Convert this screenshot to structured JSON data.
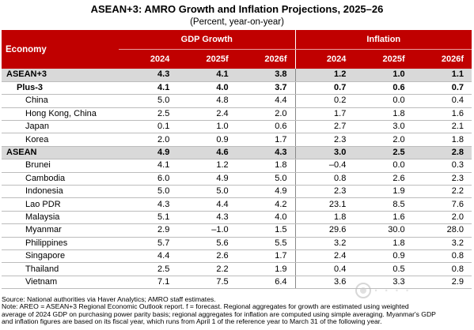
{
  "title": "ASEAN+3: AMRO Growth and Inflation Projections, 2025–26",
  "subtitle": "(Percent, year-on-year)",
  "table": {
    "economy_header": "Economy",
    "group_gdp": "GDP Growth",
    "group_inflation": "Inflation",
    "years": [
      "2024",
      "2025f",
      "2026f",
      "2024",
      "2025f",
      "2026f"
    ],
    "rows": [
      {
        "name": "ASEAN+3",
        "level": 1,
        "bold": true,
        "shade": true,
        "values": [
          "4.3",
          "4.1",
          "3.8",
          "1.2",
          "1.0",
          "1.1"
        ]
      },
      {
        "name": "Plus-3",
        "level": 2,
        "bold": true,
        "shade": false,
        "values": [
          "4.1",
          "4.0",
          "3.7",
          "0.7",
          "0.6",
          "0.7"
        ]
      },
      {
        "name": "China",
        "level": 3,
        "bold": false,
        "shade": false,
        "values": [
          "5.0",
          "4.8",
          "4.4",
          "0.2",
          "0.0",
          "0.4"
        ]
      },
      {
        "name": "Hong Kong, China",
        "level": 3,
        "bold": false,
        "shade": false,
        "values": [
          "2.5",
          "2.4",
          "2.0",
          "1.7",
          "1.8",
          "1.6"
        ]
      },
      {
        "name": "Japan",
        "level": 3,
        "bold": false,
        "shade": false,
        "values": [
          "0.1",
          "1.0",
          "0.6",
          "2.7",
          "3.0",
          "2.1"
        ]
      },
      {
        "name": "Korea",
        "level": 3,
        "bold": false,
        "shade": false,
        "values": [
          "2.0",
          "0.9",
          "1.7",
          "2.3",
          "2.0",
          "1.8"
        ]
      },
      {
        "name": "ASEAN",
        "level": 1,
        "bold": true,
        "shade": true,
        "values": [
          "4.9",
          "4.6",
          "4.3",
          "3.0",
          "2.5",
          "2.8"
        ]
      },
      {
        "name": "Brunei",
        "level": 3,
        "bold": false,
        "shade": false,
        "values": [
          "4.1",
          "1.2",
          "1.8",
          "–0.4",
          "0.0",
          "0.3"
        ]
      },
      {
        "name": "Cambodia",
        "level": 3,
        "bold": false,
        "shade": false,
        "values": [
          "6.0",
          "4.9",
          "5.0",
          "0.8",
          "2.6",
          "2.3"
        ]
      },
      {
        "name": "Indonesia",
        "level": 3,
        "bold": false,
        "shade": false,
        "values": [
          "5.0",
          "5.0",
          "4.9",
          "2.3",
          "1.9",
          "2.2"
        ]
      },
      {
        "name": "Lao PDR",
        "level": 3,
        "bold": false,
        "shade": false,
        "values": [
          "4.3",
          "4.4",
          "4.2",
          "23.1",
          "8.5",
          "7.6"
        ]
      },
      {
        "name": "Malaysia",
        "level": 3,
        "bold": false,
        "shade": false,
        "values": [
          "5.1",
          "4.3",
          "4.0",
          "1.8",
          "1.6",
          "2.0"
        ]
      },
      {
        "name": "Myanmar",
        "level": 3,
        "bold": false,
        "shade": false,
        "values": [
          "2.9",
          "–1.0",
          "1.5",
          "29.6",
          "30.0",
          "28.0"
        ]
      },
      {
        "name": "Philippines",
        "level": 3,
        "bold": false,
        "shade": false,
        "values": [
          "5.7",
          "5.6",
          "5.5",
          "3.2",
          "1.8",
          "3.2"
        ]
      },
      {
        "name": "Singapore",
        "level": 3,
        "bold": false,
        "shade": false,
        "values": [
          "4.4",
          "2.6",
          "1.7",
          "2.4",
          "0.9",
          "0.8"
        ]
      },
      {
        "name": "Thailand",
        "level": 3,
        "bold": false,
        "shade": false,
        "values": [
          "2.5",
          "2.2",
          "1.9",
          "0.4",
          "0.5",
          "0.8"
        ]
      },
      {
        "name": "Vietnam",
        "level": 3,
        "bold": false,
        "shade": false,
        "values": [
          "7.1",
          "7.5",
          "6.4",
          "3.6",
          "3.3",
          "2.9"
        ]
      }
    ]
  },
  "notes": [
    "Source: National authorities via Haver Analytics; AMRO staff estimates.",
    "Note: AREO = ASEAN+3 Regional Economic Outlook report. f = forecast. Regional aggregates for growth are estimated using weighted",
    "average of 2024 GDP on purchasing power parity basis; regional aggregates for inflation are computed using simple averaging. Myanmar's GDP",
    "and inflation figures are based on its fiscal year, which runs from April 1 of the reference year to March 31 of the following year."
  ],
  "colors": {
    "header_bg": "#c00000",
    "aggregate_shade": "#d9d9d9"
  }
}
